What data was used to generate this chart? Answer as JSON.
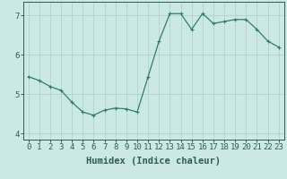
{
  "x": [
    0,
    1,
    2,
    3,
    4,
    5,
    6,
    7,
    8,
    9,
    10,
    11,
    12,
    13,
    14,
    15,
    16,
    17,
    18,
    19,
    20,
    21,
    22,
    23
  ],
  "y": [
    5.45,
    5.35,
    5.2,
    5.1,
    4.8,
    4.55,
    4.47,
    4.6,
    4.65,
    4.63,
    4.55,
    5.45,
    6.35,
    7.05,
    7.05,
    6.65,
    7.05,
    6.8,
    6.85,
    6.9,
    6.9,
    6.65,
    6.35,
    6.2
  ],
  "line_color": "#2e7d6e",
  "marker": "+",
  "marker_size": 3,
  "marker_lw": 0.8,
  "line_width": 0.9,
  "bg_color": "#cce8e4",
  "grid_color": "#aacfcb",
  "xlabel": "Humidex (Indice chaleur)",
  "ylabel": "",
  "ylim": [
    3.85,
    7.35
  ],
  "yticks": [
    4,
    5,
    6,
    7
  ],
  "xticks": [
    0,
    1,
    2,
    3,
    4,
    5,
    6,
    7,
    8,
    9,
    10,
    11,
    12,
    13,
    14,
    15,
    16,
    17,
    18,
    19,
    20,
    21,
    22,
    23
  ],
  "tick_fontsize": 6.5,
  "xlabel_fontsize": 7.5,
  "axis_color": "#2e5d56",
  "spine_color": "#2e5d56"
}
